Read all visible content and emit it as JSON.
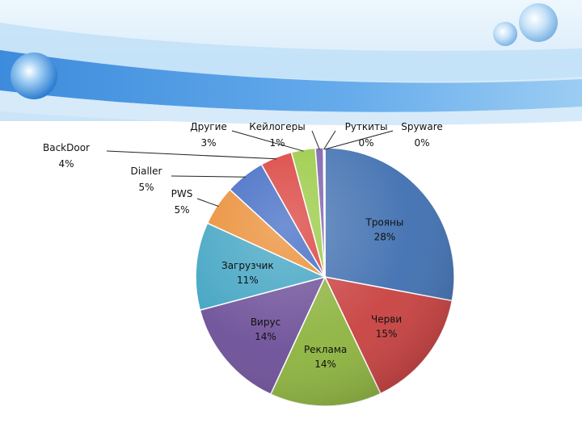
{
  "slide": {
    "header_colors": {
      "band_light": "#d9ecfb",
      "band_mid": "#8fc3ef",
      "band_dark": "#4b96df",
      "bubble": "#5fa8ea"
    }
  },
  "chart_data": {
    "type": "pie",
    "title": "",
    "unit": "%",
    "slices": [
      {
        "label": "Трояны",
        "value": 28,
        "value_label": "28%",
        "color": "#3f6fb0"
      },
      {
        "label": "Черви",
        "value": 15,
        "value_label": "15%",
        "color": "#c84140"
      },
      {
        "label": "Реклама",
        "value": 14,
        "value_label": "14%",
        "color": "#8db33e"
      },
      {
        "label": "Вирус",
        "value": 14,
        "value_label": "14%",
        "color": "#6d4f98"
      },
      {
        "label": "Загрузчик",
        "value": 11,
        "value_label": "11%",
        "color": "#3fa3c2"
      },
      {
        "label": "PWS",
        "value": 5,
        "value_label": "5%",
        "color": "#ea8a2f"
      },
      {
        "label": "Dialler",
        "value": 5,
        "value_label": "5%",
        "color": "#3b66c2"
      },
      {
        "label": "BackDoor",
        "value": 4,
        "value_label": "4%",
        "color": "#d93a36"
      },
      {
        "label": "Другие",
        "value": 3,
        "value_label": "3%",
        "color": "#96c93e"
      },
      {
        "label": "Кейлогеры",
        "value": 1,
        "value_label": "1%",
        "color": "#7a5ba8"
      },
      {
        "label": "Руткиты",
        "value": 0,
        "value_label": "0%",
        "color": "#3fa6c8"
      },
      {
        "label": "Spyware",
        "value": 0,
        "value_label": "0%",
        "color": "#f0902f"
      }
    ]
  }
}
